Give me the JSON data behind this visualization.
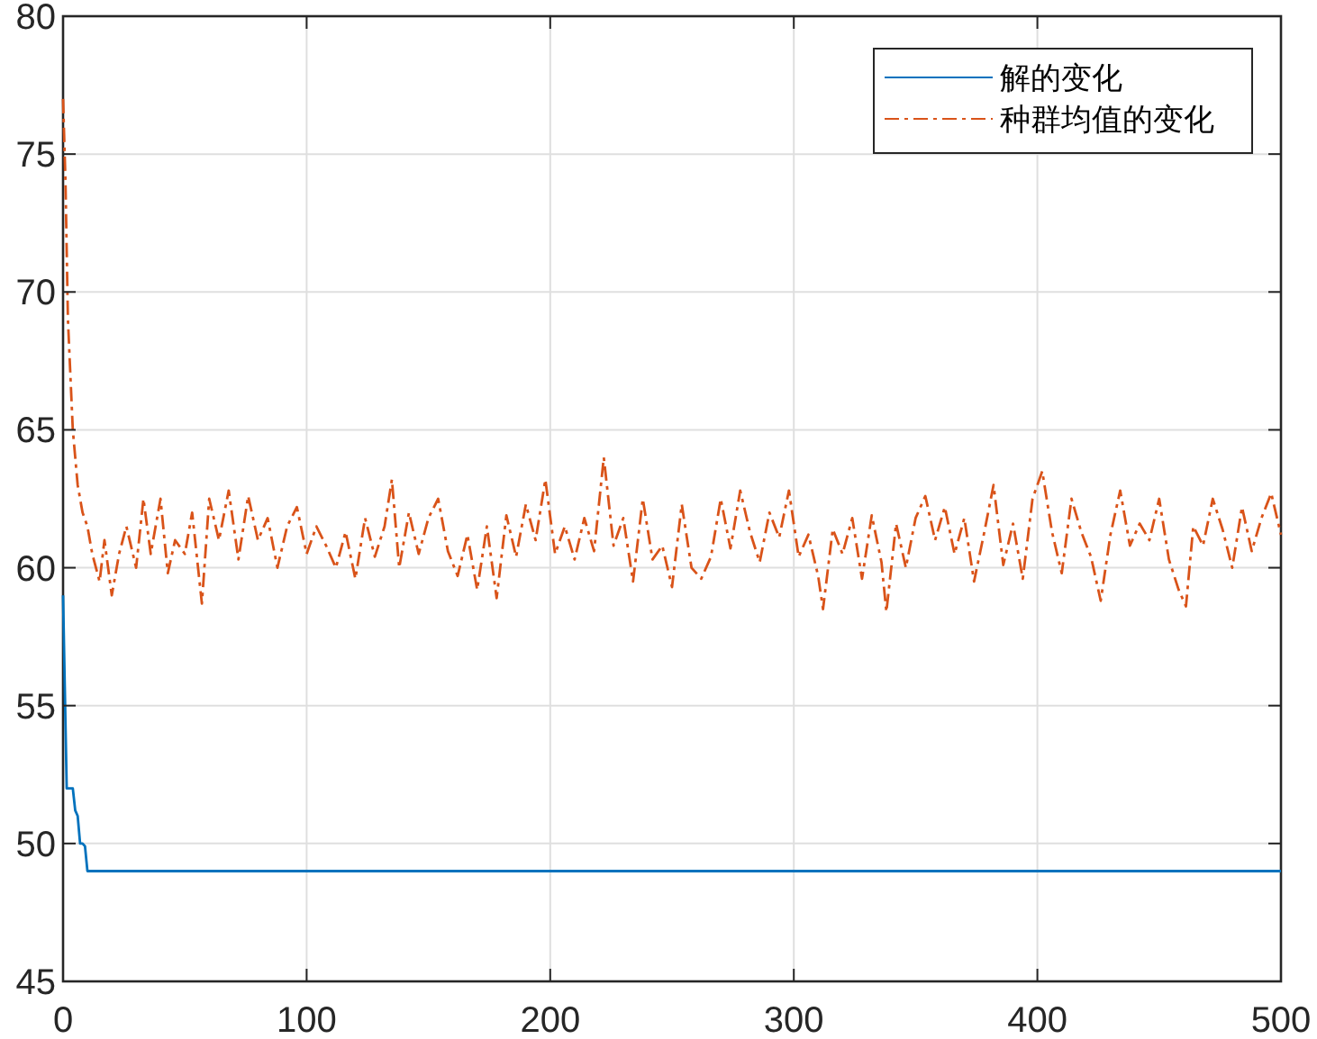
{
  "chart_data": {
    "type": "line",
    "grid": true,
    "legend": "top right",
    "xlim": [
      0,
      500
    ],
    "xticks": [
      0,
      100,
      200,
      300,
      400,
      500
    ],
    "ylim": [
      45,
      80
    ],
    "yticks": [
      45,
      50,
      55,
      60,
      65,
      70,
      75,
      80
    ],
    "series": [
      {
        "name": "解的变化",
        "color": "#0072bd",
        "line_style": "solid",
        "x": [
          0,
          1.5,
          4,
          5,
          6,
          7,
          8,
          9,
          10,
          500
        ],
        "values": [
          59,
          52,
          52,
          51.2,
          51,
          50,
          50,
          49.9,
          49,
          49
        ]
      },
      {
        "name": "种群均值的变化",
        "color": "#d95319",
        "line_style": "dashdot",
        "x": [
          0,
          1,
          2,
          3,
          4,
          6,
          8,
          10,
          12,
          15,
          17,
          20,
          23,
          26,
          30,
          33,
          36,
          40,
          43,
          46,
          50,
          53,
          57,
          60,
          64,
          68,
          72,
          76,
          80,
          84,
          88,
          92,
          96,
          100,
          104,
          108,
          112,
          116,
          120,
          124,
          128,
          132,
          135,
          138,
          142,
          146,
          150,
          154,
          158,
          162,
          166,
          170,
          174,
          178,
          182,
          186,
          190,
          194,
          198,
          202,
          206,
          210,
          214,
          218,
          222,
          226,
          230,
          234,
          238,
          242,
          246,
          250,
          254,
          258,
          262,
          266,
          270,
          274,
          278,
          282,
          286,
          290,
          294,
          298,
          302,
          306,
          310,
          312,
          316,
          320,
          324,
          328,
          332,
          336,
          338,
          342,
          346,
          350,
          354,
          358,
          362,
          366,
          370,
          374,
          378,
          382,
          386,
          390,
          394,
          398,
          402,
          406,
          410,
          414,
          418,
          422,
          426,
          430,
          434,
          438,
          442,
          446,
          450,
          454,
          458,
          461,
          464,
          468,
          472,
          476,
          480,
          484,
          488,
          492,
          496,
          500
        ],
        "values": [
          77,
          74,
          69,
          67,
          65,
          63,
          62,
          61.5,
          60.5,
          59.5,
          61,
          59,
          60.5,
          61.5,
          60,
          62.5,
          60.5,
          62.5,
          59.8,
          61,
          60.5,
          62,
          58.7,
          62.5,
          61,
          62.8,
          60.3,
          62.6,
          61,
          61.8,
          60,
          61.5,
          62.2,
          60.5,
          61.5,
          60.8,
          60,
          61.3,
          59.6,
          61.8,
          60.4,
          61.5,
          63.2,
          60,
          62,
          60.5,
          61.8,
          62.5,
          60.6,
          59.7,
          61.2,
          59.2,
          61.5,
          58.9,
          61.9,
          60.4,
          62.3,
          61,
          63.2,
          60.5,
          61.5,
          60.3,
          61.8,
          60.6,
          64,
          60.8,
          61.8,
          59.5,
          62.5,
          60.3,
          60.8,
          59.3,
          62.3,
          60,
          59.6,
          60.4,
          62.5,
          60.7,
          62.8,
          61.3,
          60.2,
          62,
          61.1,
          62.8,
          60.4,
          61.2,
          59.7,
          58.5,
          61.4,
          60.5,
          61.8,
          59.6,
          61.9,
          60.2,
          58.4,
          61.6,
          60,
          61.8,
          62.6,
          61,
          62.2,
          60.5,
          61.8,
          59.5,
          61.2,
          63,
          60.1,
          61.6,
          59.6,
          62.5,
          63.5,
          61.3,
          59.8,
          62.5,
          61.3,
          60.4,
          58.8,
          61.2,
          62.8,
          60.8,
          61.6,
          61,
          62.5,
          60.3,
          59.2,
          58.6,
          61.5,
          60.8,
          62.5,
          61.4,
          60,
          62.2,
          60.6,
          61.8,
          62.7,
          61.2
        ]
      }
    ]
  }
}
